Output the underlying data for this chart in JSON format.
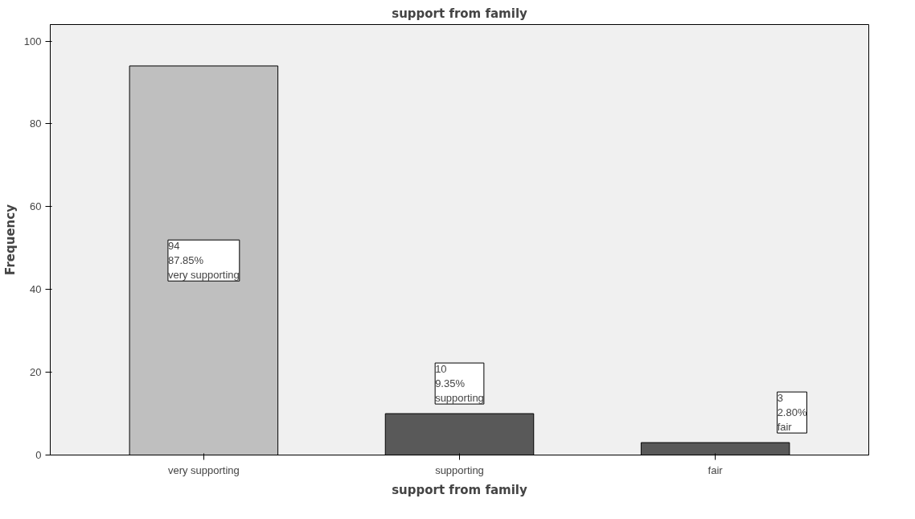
{
  "chart_data": {
    "type": "bar",
    "title": "support from family",
    "xlabel": "support from family",
    "ylabel": "Frequency",
    "categories": [
      "very supporting",
      "supporting",
      "fair"
    ],
    "values": [
      94,
      10,
      3
    ],
    "colors": [
      "#bfbfbf",
      "#595959",
      "#595959"
    ],
    "value_labels": [
      "94\n87.85%\nvery supporting",
      "10\n9.35%\nsupporting",
      "3\n2.80%\nfair"
    ],
    "ylim": [
      0,
      104
    ],
    "yticks": [
      0,
      20,
      40,
      60,
      80,
      100
    ],
    "grid": false
  }
}
